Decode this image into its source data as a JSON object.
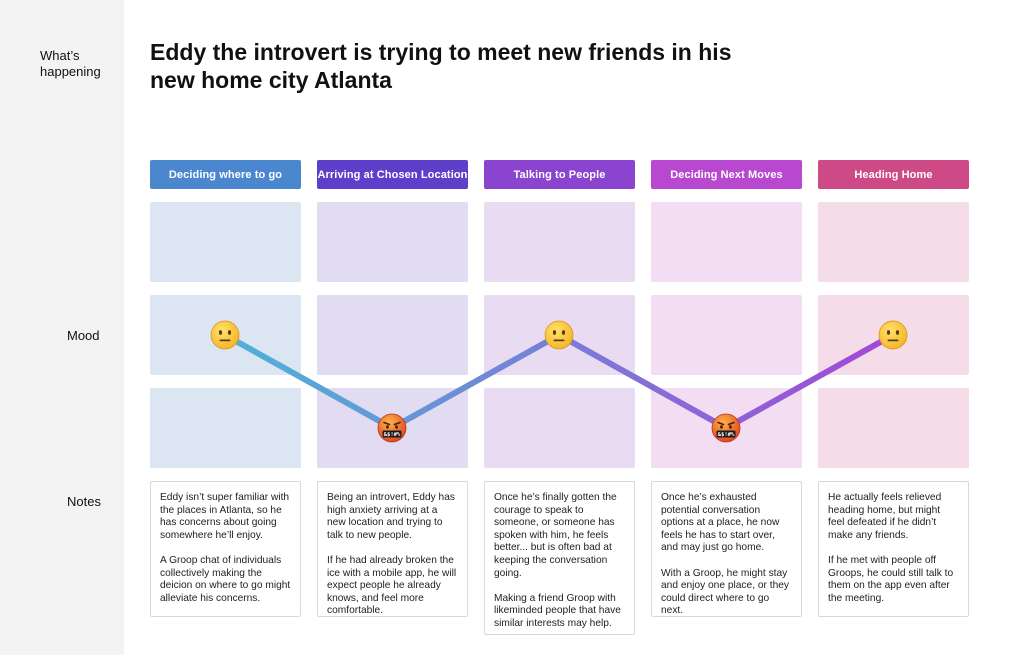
{
  "rail": {
    "whats_happening": "What’s happening",
    "mood": "Mood",
    "notes": "Notes"
  },
  "title": "Eddy the introvert is trying to meet new friends in his new home city Atlanta",
  "stages": [
    {
      "label": "Deciding where to go",
      "color": "#4a87cf",
      "tint": "#dce6f3",
      "mood": "neutral"
    },
    {
      "label": "Arriving at Chosen Location",
      "color": "#5e3fc9",
      "tint": "#e1dcf1",
      "mood": "angry"
    },
    {
      "label": "Talking to People",
      "color": "#8a44cf",
      "tint": "#e9dcf2",
      "mood": "neutral"
    },
    {
      "label": "Deciding Next Moves",
      "color": "#b848d0",
      "tint": "#f2ddf3",
      "mood": "angry"
    },
    {
      "label": "Heading Home",
      "color": "#cd4a86",
      "tint": "#f4dce8",
      "mood": "neutral"
    }
  ],
  "mood_line": {
    "gradient_start": "#4fb3d6",
    "gradient_end": "#a347d6"
  },
  "notes": [
    "Eddy isn’t super familiar with the places in Atlanta, so he has concerns about going somewhere he’ll enjoy.\n\nA Groop chat of individuals collectively making the deicion on where to go might alleviate his concerns.",
    "Being an introvert, Eddy has high anxiety arriving at a new location and trying to talk to new people.\n\nIf he had already broken the ice with a mobile app, he will expect people he already knows, and feel more comfortable.",
    "Once he’s finally gotten the courage to speak to someone, or someone has spoken with him, he feels better... but is often bad at keeping the conversation going.\n\nMaking a friend Groop with likeminded people that have similar interests may help.",
    "Once he’s exhausted potential conversation options at a place, he now feels he has to start over, and may just go home.\n\nWith a Groop, he might stay and enjoy one place, or they could direct where to go next.",
    "He actually feels relieved heading home, but might feel defeated if he didn’t make any friends.\n\nIf he met with people off Groops, he could still talk to them on the app even after the meeting."
  ]
}
